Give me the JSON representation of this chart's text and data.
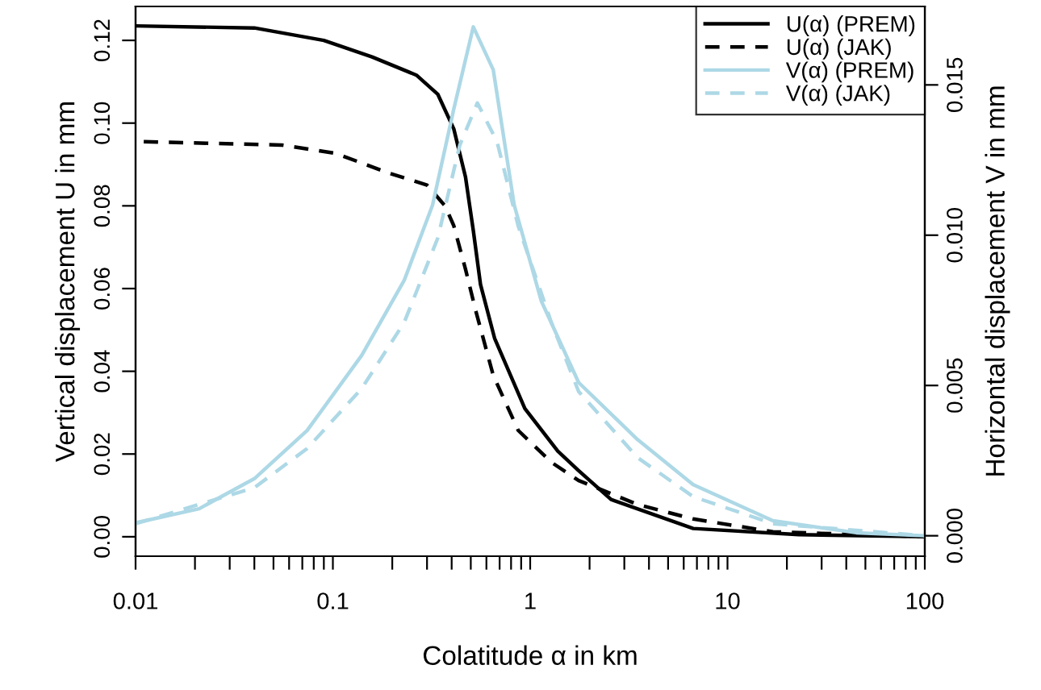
{
  "chart_data": {
    "type": "line",
    "xlabel": "Colatitude α in km",
    "ylabel": "Vertical displacement U in mm",
    "y2label": "Horizontal displacement V in mm",
    "log": "x",
    "grid": false,
    "legend": "top right",
    "marker": "none",
    "xlim": [
      0.01,
      100
    ],
    "xticks": [
      0.01,
      {
        "value": 0.02,
        "label": null
      },
      {
        "value": 0.03,
        "label": null
      },
      {
        "value": 0.04,
        "label": null
      },
      {
        "value": 0.05,
        "label": null
      },
      {
        "value": 0.06,
        "label": null
      },
      {
        "value": 0.07,
        "label": null
      },
      {
        "value": 0.08,
        "label": null
      },
      {
        "value": 0.09,
        "label": null
      },
      0.1,
      {
        "value": 0.2,
        "label": null
      },
      {
        "value": 0.3,
        "label": null
      },
      {
        "value": 0.4,
        "label": null
      },
      {
        "value": 0.5,
        "label": null
      },
      {
        "value": 0.6,
        "label": null
      },
      {
        "value": 0.7,
        "label": null
      },
      {
        "value": 0.8,
        "label": null
      },
      {
        "value": 0.9,
        "label": null
      },
      1,
      {
        "value": 2,
        "label": null
      },
      {
        "value": 3,
        "label": null
      },
      {
        "value": 4,
        "label": null
      },
      {
        "value": 5,
        "label": null
      },
      {
        "value": 6,
        "label": null
      },
      {
        "value": 7,
        "label": null
      },
      {
        "value": 8,
        "label": null
      },
      {
        "value": 9,
        "label": null
      },
      10,
      {
        "value": 20,
        "label": null
      },
      {
        "value": 30,
        "label": null
      },
      {
        "value": 40,
        "label": null
      },
      {
        "value": 50,
        "label": null
      },
      {
        "value": 60,
        "label": null
      },
      {
        "value": 70,
        "label": null
      },
      {
        "value": 80,
        "label": null
      },
      {
        "value": 90,
        "label": null
      },
      100
    ],
    "ylim": [
      -0.0047,
      0.1282
    ],
    "yticks": [
      {
        "value": 0,
        "label": "0.00"
      },
      {
        "value": 0.02,
        "label": "0.02"
      },
      {
        "value": 0.04,
        "label": "0.04"
      },
      {
        "value": 0.06,
        "label": "0.06"
      },
      {
        "value": 0.08,
        "label": "0.08"
      },
      {
        "value": 0.1,
        "label": "0.10"
      },
      {
        "value": 0.12,
        "label": "0.12"
      }
    ],
    "y2lim": [
      -0.00068,
      0.01761
    ],
    "y2ticks": [
      {
        "value": 0,
        "label": "0.000"
      },
      {
        "value": 0.005,
        "label": "0.005"
      },
      {
        "value": 0.01,
        "label": "0.010"
      },
      {
        "value": 0.015,
        "label": "0.015"
      }
    ],
    "series": [
      {
        "name": "U(α) (PREM)",
        "color": "#000000",
        "line_style": "solid",
        "x": [
          0.01,
          0.04,
          0.09,
          0.158,
          0.265,
          0.34,
          0.41,
          0.47,
          0.515,
          0.56,
          0.66,
          0.94,
          1.38,
          1.76,
          2.57,
          6.7,
          23,
          100
        ],
        "values": [
          0.1235,
          0.123,
          0.12,
          0.116,
          0.1116,
          0.107,
          0.0986,
          0.087,
          0.074,
          0.061,
          0.048,
          0.031,
          0.0207,
          0.016,
          0.009,
          0.002,
          0.0005,
          0
        ]
      },
      {
        "name": "U(α) (JAK)",
        "color": "#000000",
        "line_style": "dashed",
        "x": [
          0.011,
          0.055,
          0.103,
          0.19,
          0.3,
          0.37,
          0.41,
          0.47,
          0.53,
          0.65,
          0.87,
          1.28,
          1.76,
          3.5,
          6.7,
          17,
          100
        ],
        "values": [
          0.0955,
          0.0947,
          0.0927,
          0.088,
          0.085,
          0.08,
          0.0752,
          0.0647,
          0.0546,
          0.039,
          0.0257,
          0.018,
          0.0136,
          0.0078,
          0.0043,
          0.0012,
          0
        ]
      },
      {
        "name": "V(α) (PREM)",
        "color": "#add8e6",
        "line_style": "solid",
        "axis": "y2",
        "x": [
          0.01,
          0.021,
          0.04,
          0.074,
          0.14,
          0.23,
          0.32,
          0.41,
          0.515,
          0.65,
          0.83,
          1.14,
          1.76,
          3.5,
          6.7,
          17,
          45,
          100
        ],
        "values": [
          0.00043,
          0.0009,
          0.0019,
          0.0035,
          0.006,
          0.0085,
          0.011,
          0.0142,
          0.01693,
          0.0155,
          0.011,
          0.0078,
          0.0051,
          0.0032,
          0.0017,
          0.0005,
          0.0001,
          0
        ]
      },
      {
        "name": "V(α) (JAK)",
        "color": "#add8e6",
        "line_style": "dashed",
        "axis": "y2",
        "x": [
          0.01,
          0.04,
          0.074,
          0.14,
          0.23,
          0.34,
          0.44,
          0.54,
          0.68,
          0.87,
          1.28,
          1.76,
          3.5,
          6.7,
          17,
          100
        ],
        "values": [
          0.0004,
          0.0016,
          0.0029,
          0.0049,
          0.0071,
          0.0099,
          0.013,
          0.0144,
          0.0131,
          0.0103,
          0.0071,
          0.0048,
          0.0026,
          0.0013,
          0.0004,
          0
        ]
      }
    ]
  }
}
